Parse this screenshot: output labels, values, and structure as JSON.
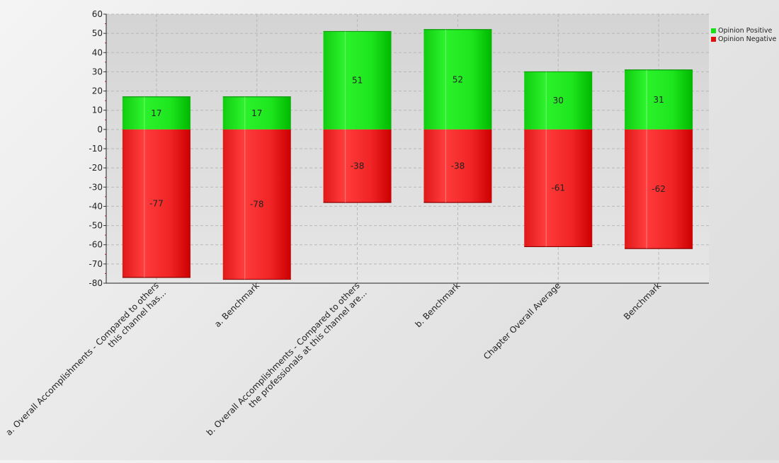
{
  "chart_data": {
    "type": "bar",
    "stacked": true,
    "categories": [
      [
        "a. Overall Accomplishments - Compared to others",
        "this channel has..."
      ],
      [
        "a. Benchmark"
      ],
      [
        "b. Overall Accomplishments - Compared to others",
        "the professionals at this channel are..."
      ],
      [
        "b. Benchmark"
      ],
      [
        "Chapter Overall Average"
      ],
      [
        "Benchmark"
      ]
    ],
    "series": [
      {
        "name": "Opinion Positive",
        "color": "#18e018",
        "values": [
          17,
          17,
          51,
          52,
          30,
          31
        ]
      },
      {
        "name": "Opinion Negative",
        "color": "#e01010",
        "values": [
          -77,
          -78,
          -38,
          -38,
          -61,
          -62
        ]
      }
    ],
    "ylim": [
      -80,
      60
    ],
    "yticks": [
      60,
      50,
      40,
      30,
      20,
      10,
      0,
      -10,
      -20,
      -30,
      -40,
      -50,
      -60,
      -70,
      -80
    ],
    "grid": true,
    "legend_position": "top-right",
    "title": "",
    "xlabel": "",
    "ylabel": ""
  }
}
